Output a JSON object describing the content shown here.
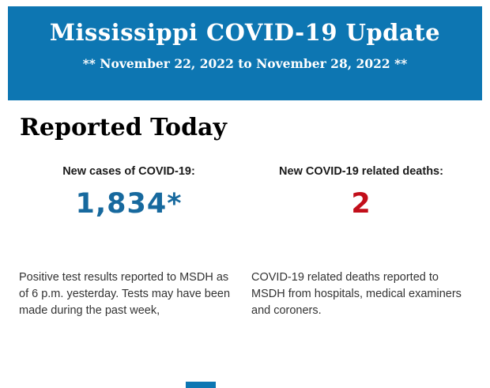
{
  "header": {
    "background_color": "#0d76b2",
    "title": "Mississippi COVID-19 Update",
    "date_range": "** November 22, 2022 to November 28, 2022 **"
  },
  "main": {
    "section_title": "Reported Today",
    "stats": [
      {
        "label": "New cases of COVID-19:",
        "value": "1,834*",
        "value_color": "#17699e",
        "description": "Positive test results reported to MSDH as of 6 p.m. yesterday. Tests may have been made during the past week,",
        "description_lines": [
          "Positive test results reported to MSDH as",
          "of 6 p.m. yesterday. Tests may have been",
          "made during the past week,"
        ]
      },
      {
        "label": "New COVID-19 related deaths:",
        "value": "2",
        "value_color": "#c20e1a",
        "description": "COVID-19 related deaths reported to MSDH from hospitals, medical examiners and coroners.",
        "description_lines": [
          "COVID-19 related deaths reported to",
          "MSDH from hospitals, medical examiners",
          "and coroners."
        ]
      }
    ]
  },
  "footer": {
    "partial_bar_color": "#0d76b2"
  }
}
